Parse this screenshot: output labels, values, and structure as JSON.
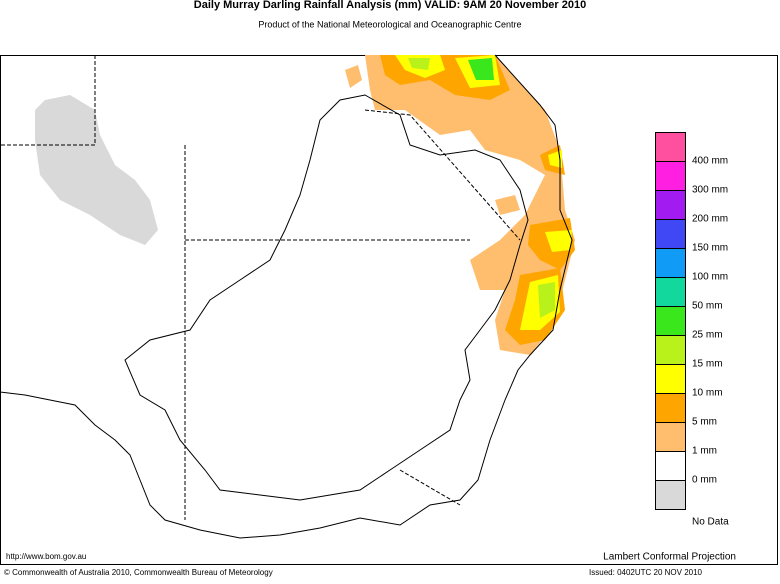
{
  "header": {
    "title": "Daily Murray Darling Rainfall Analysis (mm)  VALID: 9AM 20 November 2010",
    "subtitle": "Product of the National Meteorological and Oceanographic Centre"
  },
  "legend": {
    "colors": [
      "#ff4f9f",
      "#ff1fe0",
      "#a21cf2",
      "#4048f5",
      "#109cf6",
      "#13d89e",
      "#3ae61c",
      "#b8f21a",
      "#ffff00",
      "#ffa500",
      "#ffbe6e",
      "#ffffff",
      "#d9d9d9"
    ],
    "labels": [
      "400 mm",
      "300 mm",
      "200 mm",
      "150 mm",
      "100 mm",
      "50 mm",
      "25 mm",
      "15 mm",
      "10 mm",
      "5 mm",
      "1 mm",
      "0 mm",
      "No Data"
    ]
  },
  "footer": {
    "url": "http://www.bom.gov.au",
    "projection": "Lambert Conformal Projection",
    "copyright": "© Commonwealth of Australia 2010, Commonwealth Bureau of Meteorology",
    "issued": "Issued: 0402UTC 20 NOV 2010"
  }
}
